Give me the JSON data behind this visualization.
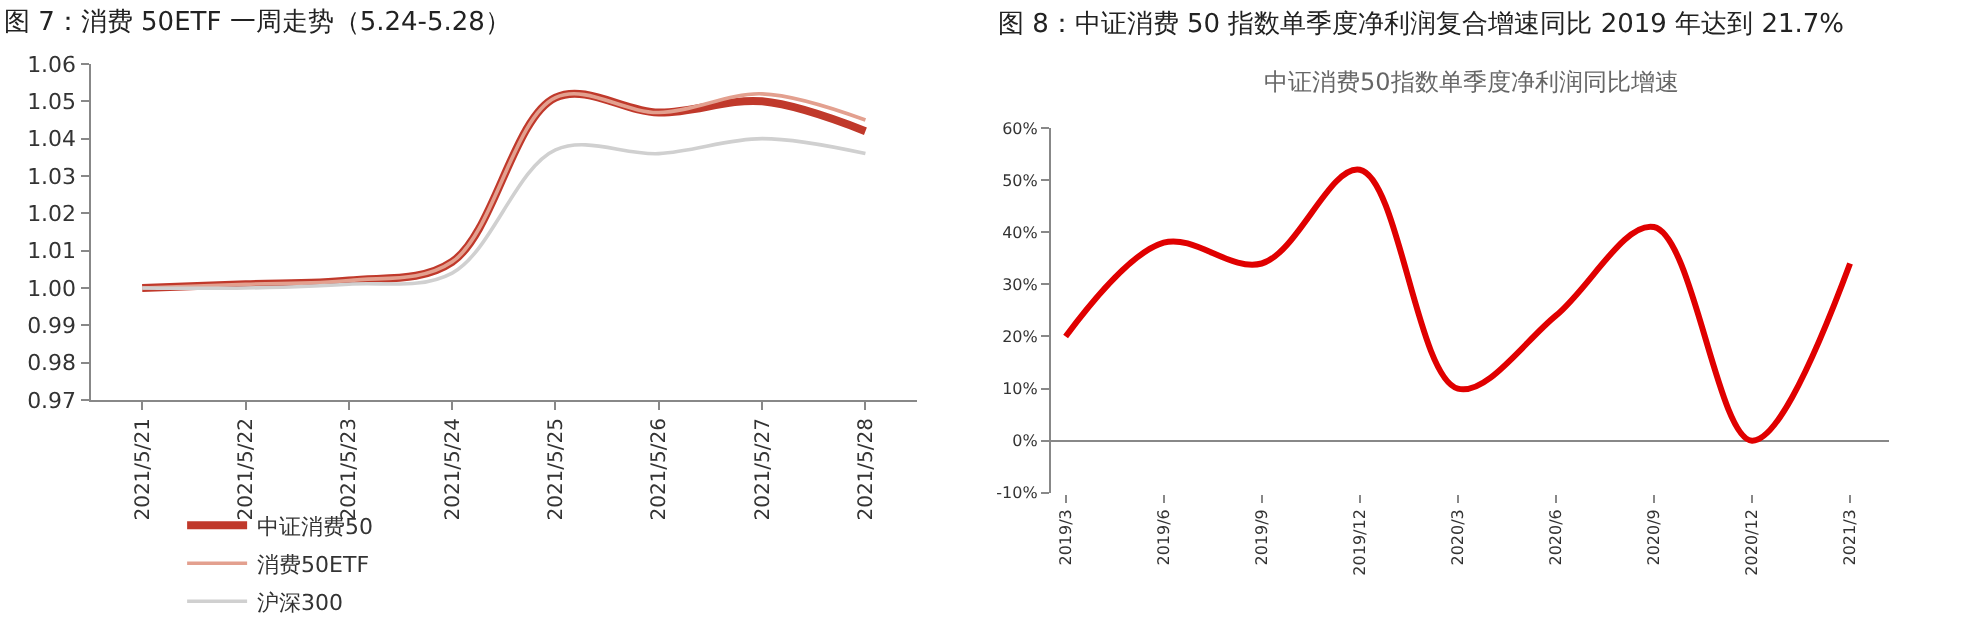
{
  "chart_data": [
    {
      "type": "line",
      "title": "图 7：消费 50ETF 一周走势（5.24-5.28）",
      "categories": [
        "2021/5/21",
        "2021/5/22",
        "2021/5/23",
        "2021/5/24",
        "2021/5/25",
        "2021/5/26",
        "2021/5/27",
        "2021/5/28"
      ],
      "series": [
        {
          "name": "中证消费50",
          "color": "#c0392b",
          "values": [
            1.0,
            1.001,
            1.002,
            1.007,
            1.051,
            1.047,
            1.05,
            1.042
          ]
        },
        {
          "name": "消费50ETF",
          "color": "#e3a08f",
          "values": [
            1.0,
            1.001,
            1.002,
            1.007,
            1.051,
            1.047,
            1.052,
            1.045
          ]
        },
        {
          "name": "沪深300",
          "color": "#d0d0d0",
          "values": [
            1.0,
            1.0,
            1.001,
            1.004,
            1.037,
            1.036,
            1.04,
            1.036
          ]
        }
      ],
      "ylim": [
        0.97,
        1.06
      ],
      "yticks": [
        {
          "value": 0.97,
          "label": "0.97"
        },
        {
          "value": 0.98,
          "label": "0.98"
        },
        {
          "value": 0.99,
          "label": "0.99"
        },
        {
          "value": 1.0,
          "label": "1.00"
        },
        {
          "value": 1.01,
          "label": "1.01"
        },
        {
          "value": 1.02,
          "label": "1.02"
        },
        {
          "value": 1.03,
          "label": "1.03"
        },
        {
          "value": 1.04,
          "label": "1.04"
        },
        {
          "value": 1.05,
          "label": "1.05"
        },
        {
          "value": 1.06,
          "label": "1.06"
        }
      ],
      "legend": "bottom",
      "marker": "none",
      "line_style": "solid"
    },
    {
      "type": "line",
      "title": "图 8：中证消费 50 指数单季度净利润复合增速同比 2019 年达到 21.7%",
      "subtitle": "中证消费50指数单季度净利润同比增速",
      "categories": [
        "2019/3",
        "2019/6",
        "2019/9",
        "2019/12",
        "2020/3",
        "2020/6",
        "2020/9",
        "2020/12",
        "2021/3"
      ],
      "series": [
        {
          "color": "#e00000",
          "values": [
            20,
            38,
            34,
            52,
            10,
            24,
            41,
            0,
            34
          ]
        }
      ],
      "ylim": [
        -10,
        60
      ],
      "yticks": [
        {
          "value": -10,
          "label": "-10%"
        },
        {
          "value": 0,
          "label": "0%"
        },
        {
          "value": 10,
          "label": "10%"
        },
        {
          "value": 20,
          "label": "20%"
        },
        {
          "value": 30,
          "label": "30%"
        },
        {
          "value": 40,
          "label": "40%"
        },
        {
          "value": 50,
          "label": "50%"
        },
        {
          "value": 60,
          "label": "60%"
        }
      ],
      "legend": false,
      "marker": "none",
      "line_style": "solid"
    }
  ]
}
